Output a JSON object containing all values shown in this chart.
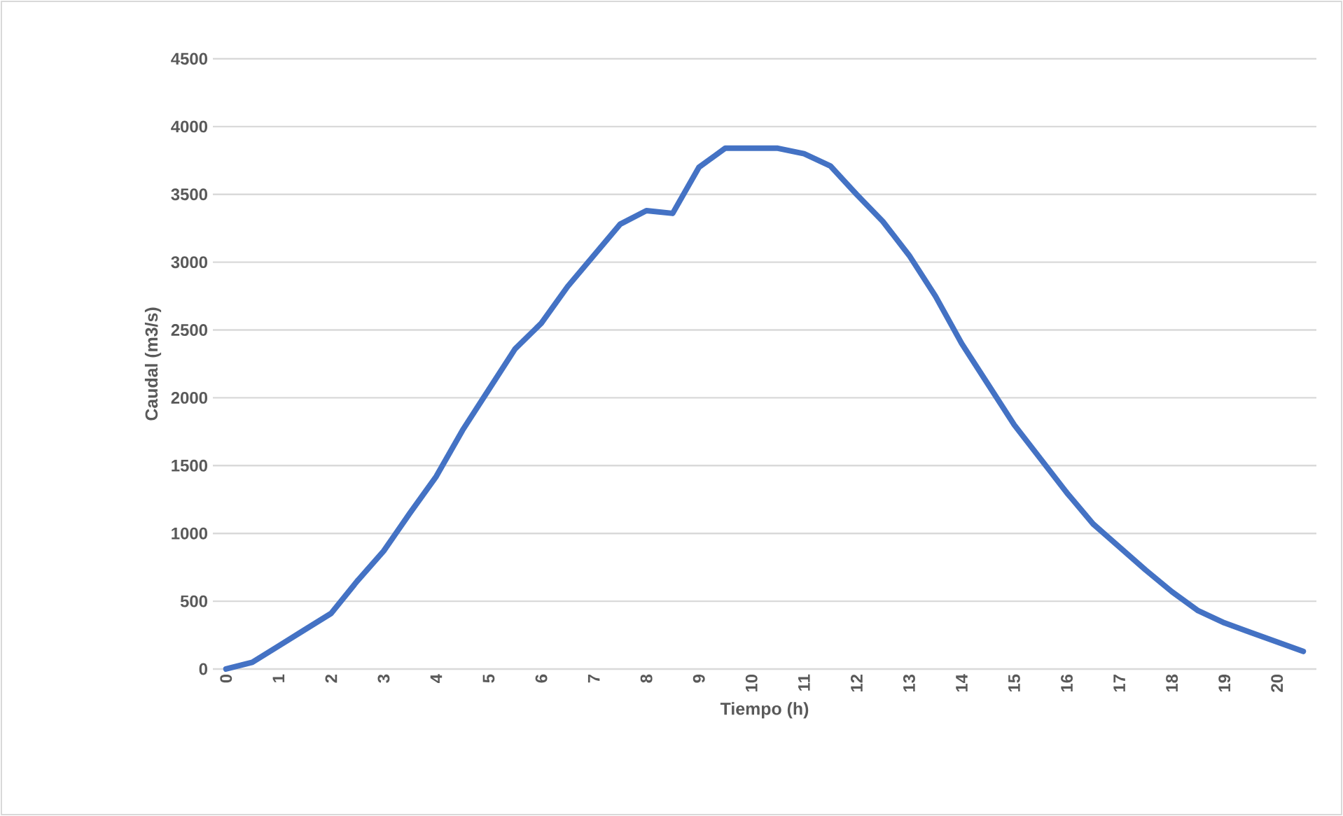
{
  "chart_data": {
    "type": "line",
    "xlabel": "Tiempo (h)",
    "ylabel": "Caudal (m3/s)",
    "categories": [
      "0",
      null,
      "1",
      null,
      "2",
      null,
      "3",
      null,
      "4",
      null,
      "5",
      null,
      "6",
      null,
      "7",
      null,
      "8",
      null,
      "9",
      null,
      "10",
      null,
      "11",
      null,
      "12",
      null,
      "13",
      null,
      "14",
      null,
      "15",
      null,
      "16",
      null,
      "17",
      null,
      "18",
      null,
      "19",
      null,
      "20",
      null
    ],
    "series": [
      {
        "color": "#4472c4",
        "values": [
          0,
          50,
          170,
          290,
          410,
          650,
          870,
          1150,
          1420,
          1760,
          2060,
          2360,
          2550,
          2820,
          3050,
          3280,
          3380,
          3360,
          3700,
          3840,
          3840,
          3840,
          3800,
          3710,
          3500,
          3300,
          3050,
          2750,
          2400,
          2100,
          1800,
          1550,
          1300,
          1070,
          900,
          730,
          570,
          430,
          340,
          270,
          200,
          130
        ]
      }
    ],
    "ylim": [
      0,
      4500
    ],
    "yticks": [
      0,
      500,
      1000,
      1500,
      2000,
      2500,
      3000,
      3500,
      4000,
      4500
    ],
    "grid": "y",
    "marker": "none",
    "line_style": "solid"
  }
}
